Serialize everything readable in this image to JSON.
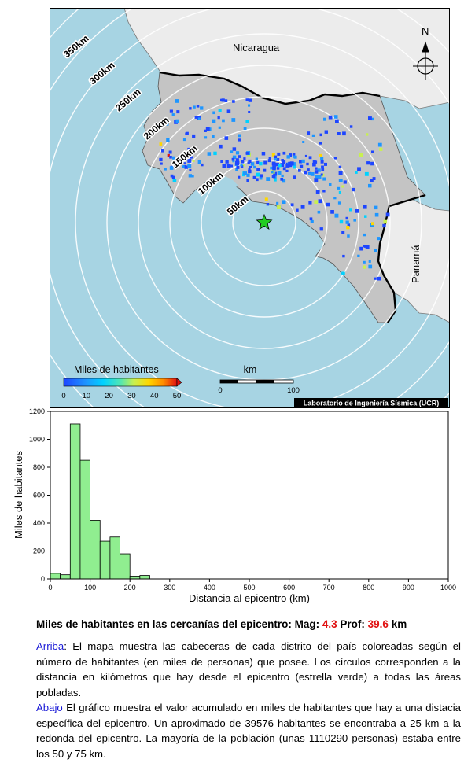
{
  "map": {
    "labels": {
      "nicaragua": "Nicaragua",
      "panama": "Panamá"
    },
    "ring_labels": [
      "50km",
      "100km",
      "150km",
      "200km",
      "250km",
      "300km",
      "350km"
    ],
    "north_label": "N",
    "legend": {
      "title": "Miles de habitantes",
      "ticks": [
        "0",
        "10",
        "20",
        "30",
        "40",
        "50"
      ],
      "colors": [
        "#1e46ff",
        "#1e96ff",
        "#00d2ff",
        "#50e6b4",
        "#c8f050",
        "#ffd700",
        "#ff8c00",
        "#e01010"
      ]
    },
    "scale": {
      "title": "km",
      "ticks": [
        "0",
        "100"
      ]
    },
    "credit": "Laboratorio de Ingeniería Sísmica (UCR)",
    "colors": {
      "sea": "#a7d4e3",
      "land_cr": "#c4c4c4",
      "land_other": "#ececec",
      "epicenter": "#22cc22"
    }
  },
  "chart_data": {
    "type": "bar",
    "title": "",
    "xlabel": "Distancia al epicentro (km)",
    "ylabel": "Miles de habitantes",
    "xlim": [
      0,
      1000
    ],
    "ylim": [
      0,
      1200
    ],
    "xticks": [
      0,
      100,
      200,
      300,
      400,
      500,
      600,
      700,
      800,
      900,
      1000
    ],
    "yticks": [
      0,
      200,
      400,
      600,
      800,
      1000,
      1200
    ],
    "bin_width": 25,
    "bin_starts": [
      0,
      25,
      50,
      75,
      100,
      125,
      150,
      175,
      200,
      225,
      250
    ],
    "values": [
      40,
      30,
      1110,
      850,
      420,
      270,
      300,
      180,
      20,
      25,
      0
    ],
    "bar_color": "#90ee90",
    "grid": false,
    "legend": "none"
  },
  "caption": {
    "headline_prefix": "Miles de habitantes en las cercanías del epicentro: Mag: ",
    "mag": "4.3",
    "prof_label": " Prof: ",
    "prof": "39.6",
    "prof_unit": " km",
    "arriba_kw": "Arriba",
    "arriba_text": ": El mapa muestra las cabeceras de cada distrito del país coloreadas según el número de habitantes (en miles de personas) que posee. Los círculos corresponden a la distancia en kilómetros que hay desde el epicentro (estrella verde) a todas las áreas pobladas.",
    "abajo_kw": "Abajo",
    "abajo_text": " El gráfico muestra el valor acumulado en miles de habitantes que hay a una distacia específica del epicentro. Un aproximado de 39576 habitantes se encontraba a 25 km a la redonda del epicentro. La mayoría de la población (unas 1110290 personas) estaba entre los 50 y 75 km."
  }
}
